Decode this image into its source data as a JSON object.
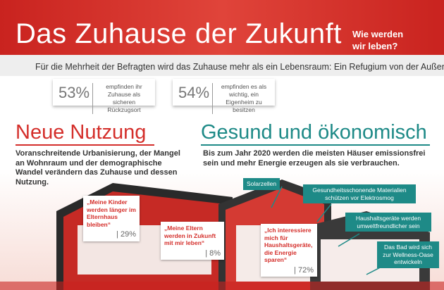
{
  "header": {
    "title": "Das Zuhause der Zukunft",
    "tagline": "Wie werden wir leben?",
    "intro": "Für die Mehrheit der Befragten wird das Zuhause mehr als ein Lebensraum: Ein Refugium von der Außenwelt."
  },
  "stats": [
    {
      "value": "53%",
      "text": "empfinden ihr Zuhause als sicheren Rückzugsort"
    },
    {
      "value": "54%",
      "text": "empfinden es als wichtig, ein Eigenheim zu besitzen"
    }
  ],
  "sections": [
    {
      "heading": "Neue Nutzung",
      "text": "Voranschreitende Urbanisierung, der Mangel an Wohnraum und der demographische Wandel verändern das Zuhause und dessen Nutzung."
    },
    {
      "heading": "Gesund und ökonomisch",
      "text": "Bis zum Jahr 2020 werden die meisten Häuser emissionsfrei sein und mehr Energie erzeugen als sie verbrauchen."
    }
  ],
  "quotes": [
    {
      "text": "„Meine Kinder werden länger im Elternhaus bleiben“",
      "value": "| 29%"
    },
    {
      "text": "„Meine Eltern werden in Zukunft mit mir leben“",
      "value": "| 8%"
    },
    {
      "text": "„Ich interessiere mich für Haushaltsgeräte, die Energie sparen“",
      "value": "| 72%"
    }
  ],
  "features": [
    "Solarzellen",
    "Gesundheitsschonende Materialien schützen vor Elektrosmog",
    "Haushaltsgeräte werden umweltfreundlicher sein",
    "Das Bad wird sich zur Wellness-Oase entwickeln"
  ]
}
